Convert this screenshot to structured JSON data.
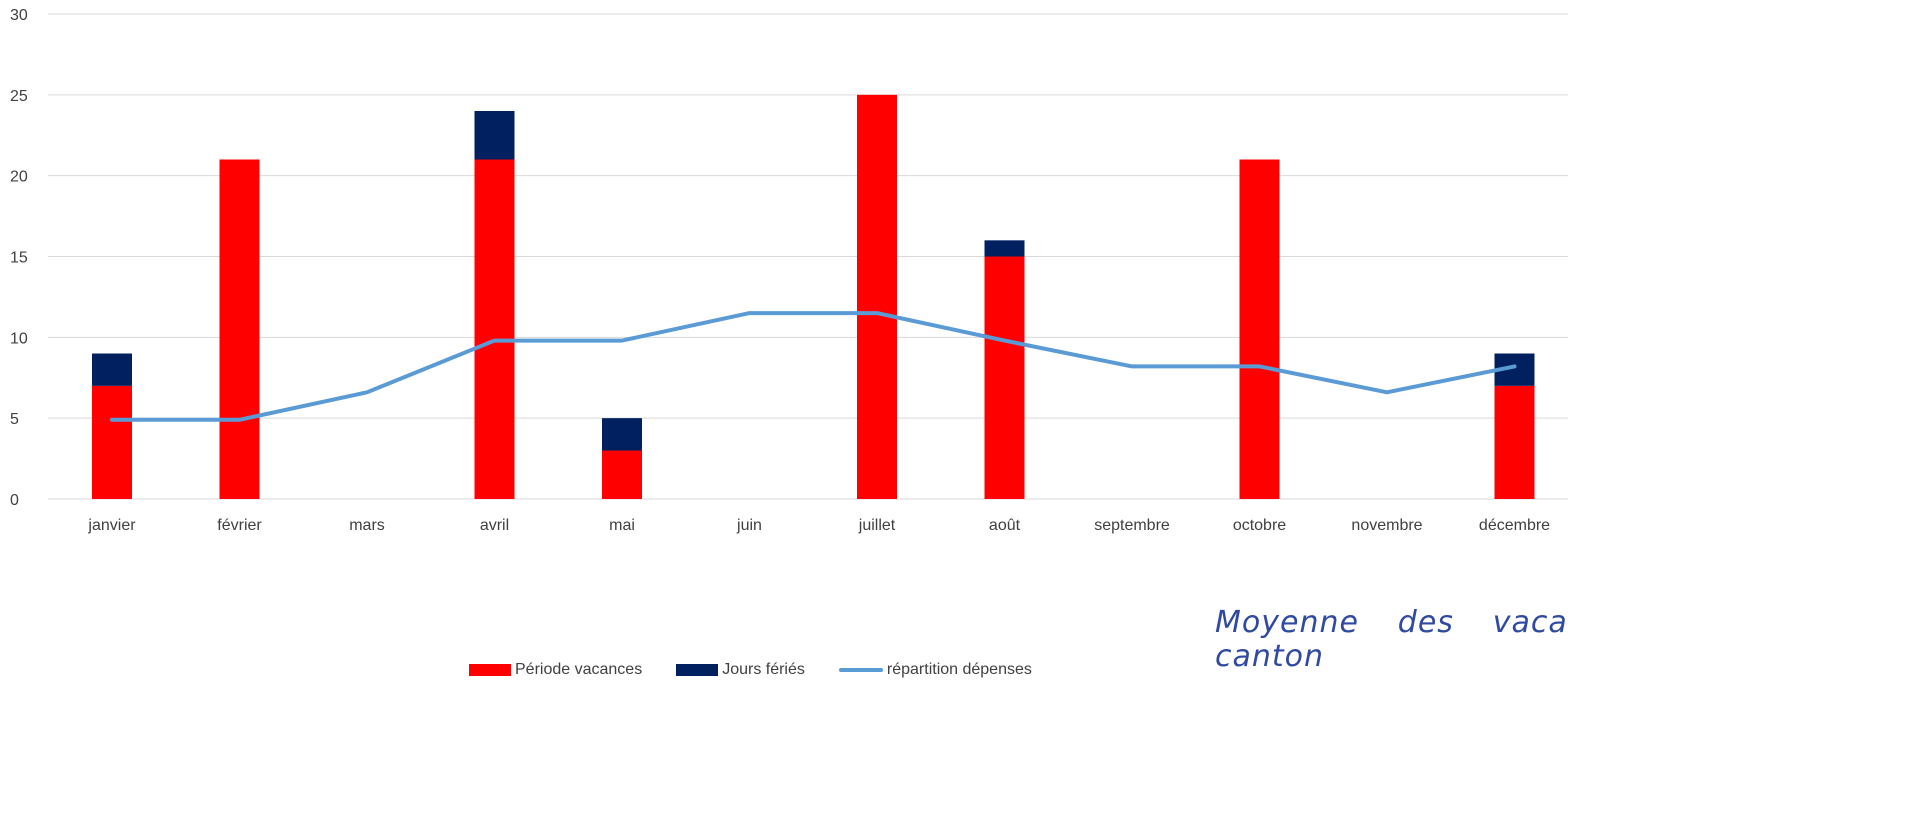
{
  "chart_data": {
    "type": "bar",
    "stacked": true,
    "categories": [
      "janvier",
      "février",
      "mars",
      "avril",
      "mai",
      "juin",
      "juillet",
      "août",
      "septembre",
      "octobre",
      "novembre",
      "décembre"
    ],
    "series": [
      {
        "name": "Période vacances",
        "type": "bar",
        "color": "#ff0000",
        "values": [
          7,
          21,
          0,
          21,
          3,
          0,
          25,
          15,
          0,
          21,
          0,
          7
        ]
      },
      {
        "name": "Jours fériés",
        "type": "bar",
        "color": "#002060",
        "values": [
          2,
          0,
          0,
          3,
          2,
          0,
          0,
          1,
          0,
          0,
          0,
          2
        ]
      },
      {
        "name": "répartition dépenses",
        "type": "line",
        "color": "#5b9bd5",
        "values": [
          4.9,
          4.9,
          6.6,
          9.8,
          9.8,
          11.5,
          11.5,
          9.8,
          8.2,
          8.2,
          6.6,
          8.2
        ]
      }
    ],
    "ylim": [
      0,
      30
    ],
    "yticks": [
      0,
      5,
      10,
      15,
      20,
      25,
      30
    ],
    "grid": true,
    "legend_position": "bottom"
  },
  "note": {
    "text": "Moyenne des vacances de chaque canton ayant"
  }
}
